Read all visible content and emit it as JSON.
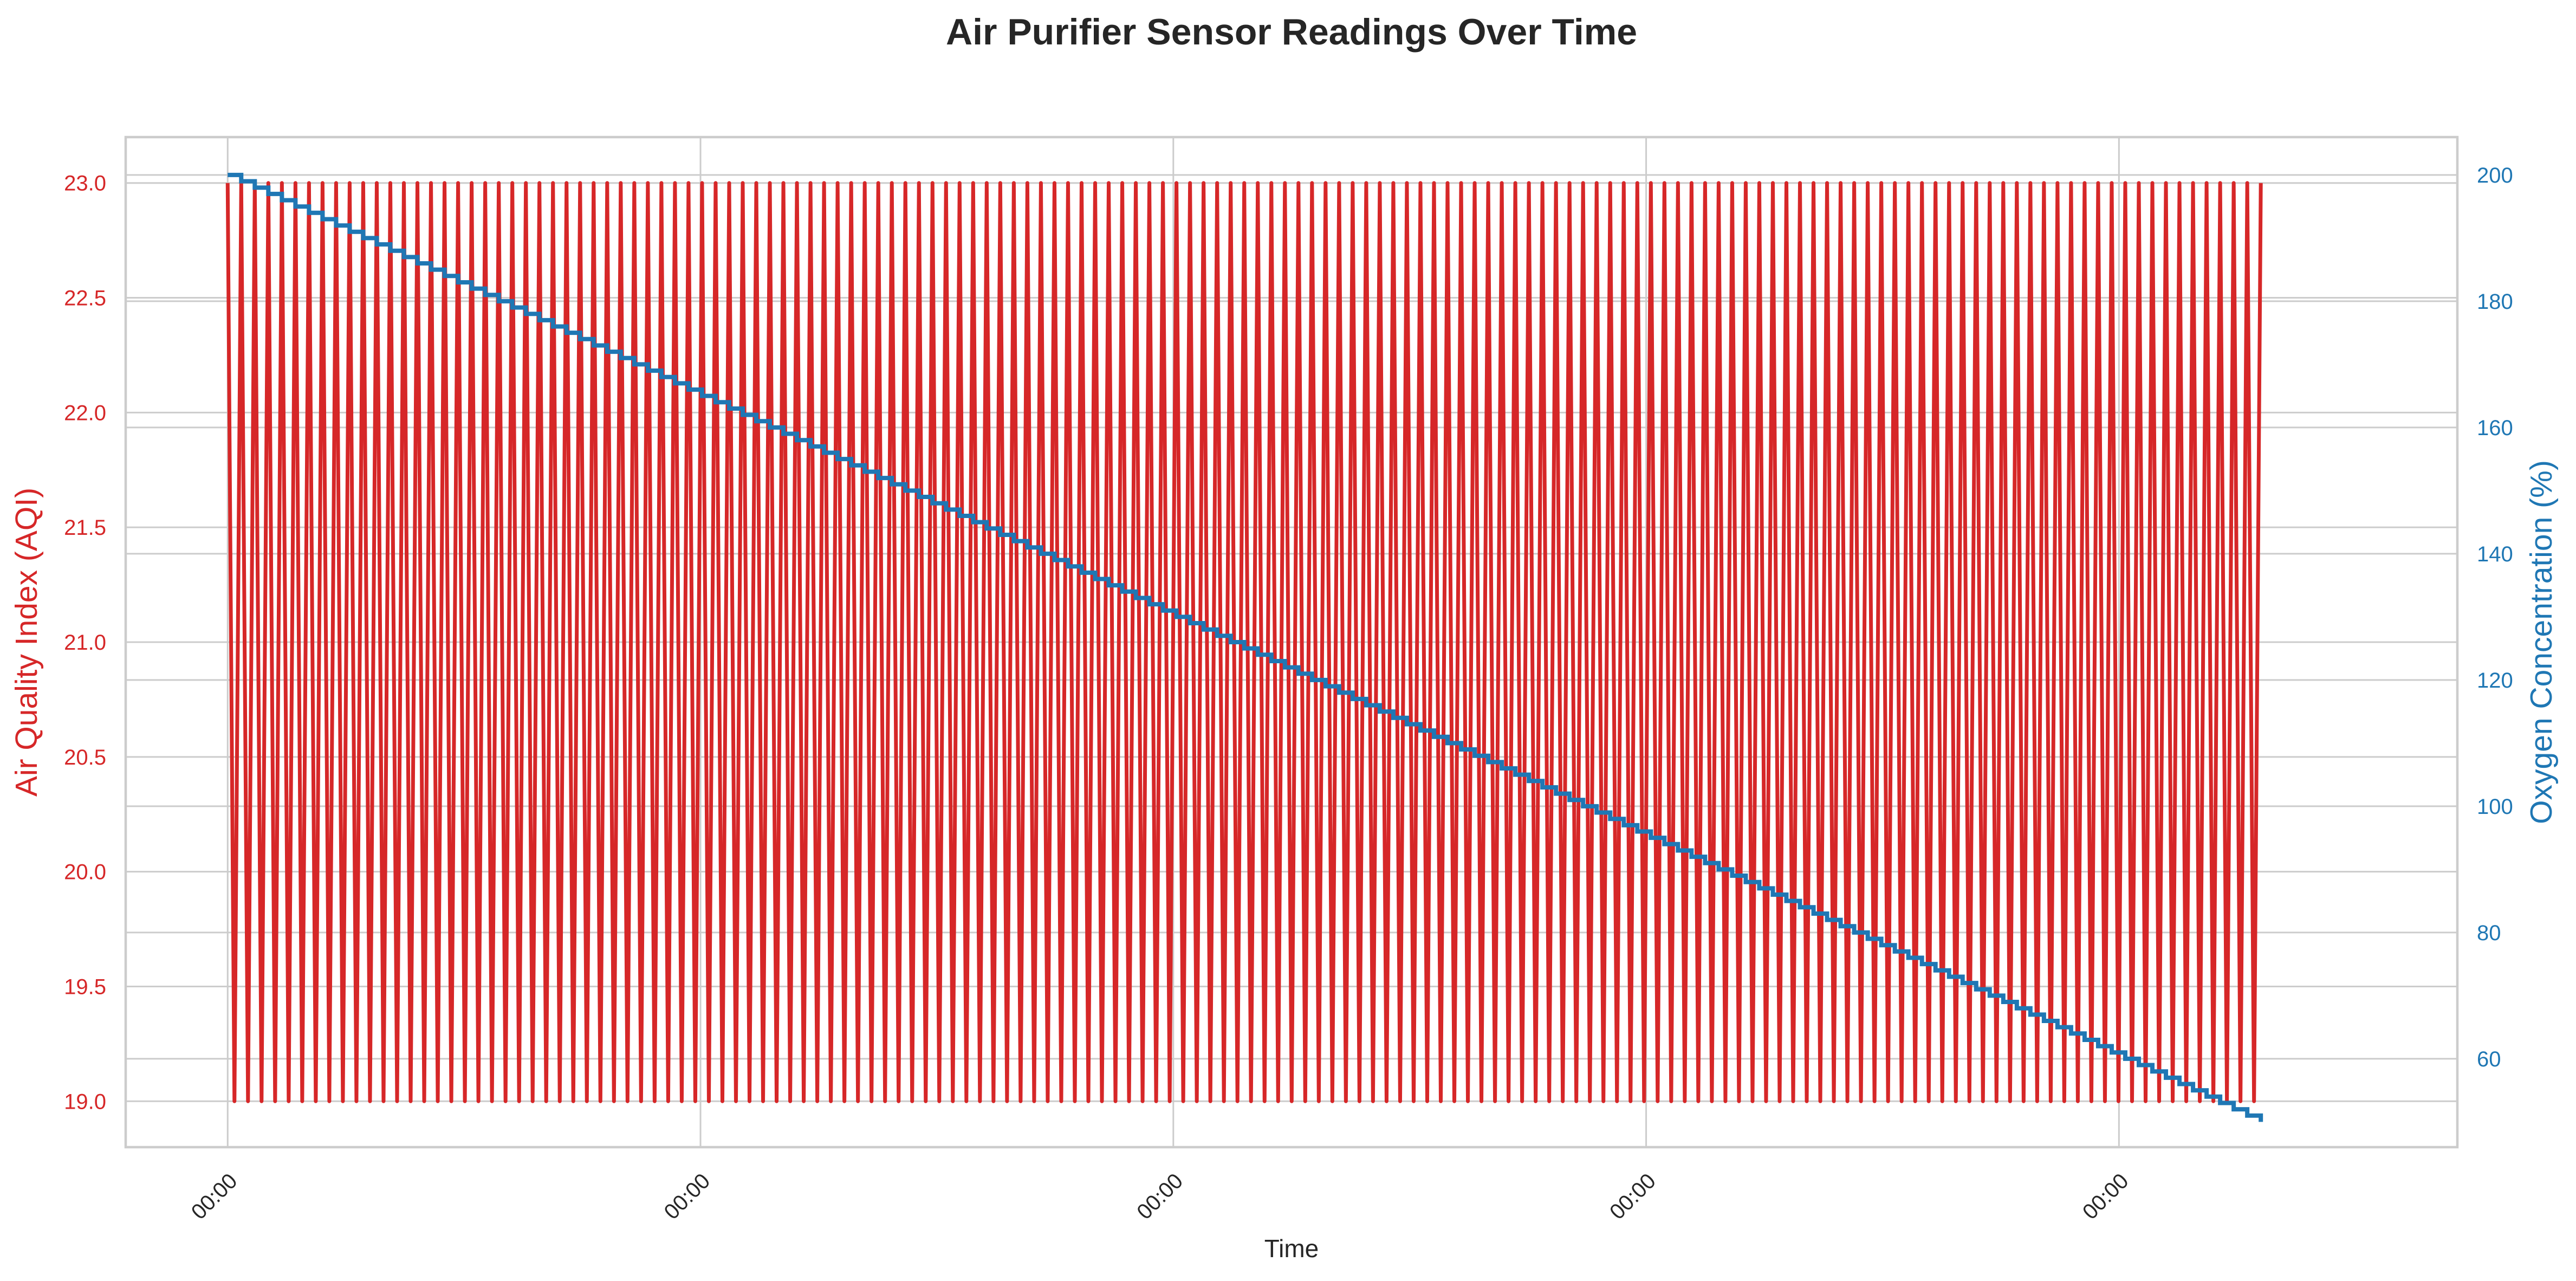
{
  "chart_data": {
    "type": "line",
    "title": "Air Purifier Sensor Readings Over Time",
    "xlabel": "Time",
    "x_tick_labels": [
      "00:00",
      "00:00",
      "00:00",
      "00:00",
      "00:00"
    ],
    "grid": true,
    "legend": "none",
    "y_left": {
      "label": "Air Quality Index (AQI)",
      "color": "#d62728",
      "ylim": [
        18.8,
        23.2
      ],
      "ticks": [
        "19.0",
        "19.5",
        "20.0",
        "20.5",
        "21.0",
        "21.5",
        "22.0",
        "22.5",
        "23.0"
      ]
    },
    "y_right": {
      "label": "Oxygen Concentration (%)",
      "color": "#1f77b4",
      "ylim": [
        46,
        206
      ],
      "ticks": [
        "60",
        "80",
        "100",
        "120",
        "140",
        "160",
        "180",
        "200"
      ]
    },
    "x_range": [
      -0.2157,
      4.7157
    ],
    "series": [
      {
        "axis": "left",
        "color": "#d62728",
        "pattern": "alternating",
        "points": 301,
        "values_cycle": [
          23,
          19
        ],
        "x_start": 0,
        "x_end": 4.3
      },
      {
        "axis": "right",
        "color": "#1f77b4",
        "pattern": "staircase",
        "start_value": 200,
        "end_value": 50,
        "step": -1,
        "x_start": 0,
        "x_end": 4.3
      }
    ]
  }
}
